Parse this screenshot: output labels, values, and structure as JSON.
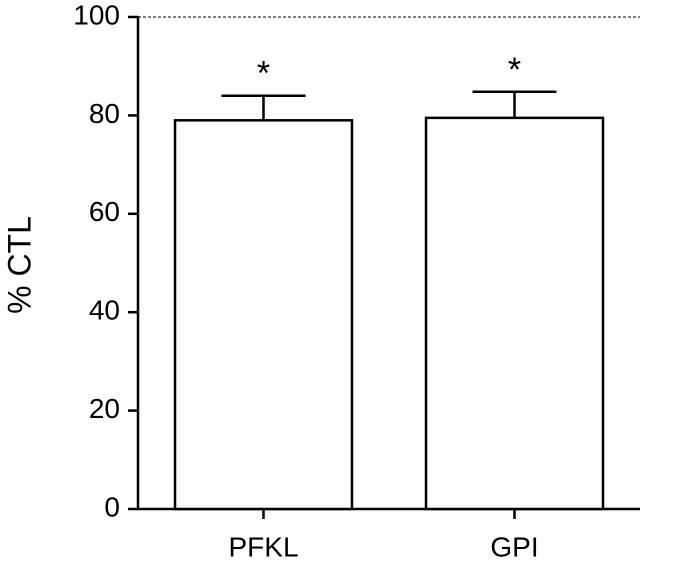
{
  "chart_data": {
    "type": "bar",
    "y_label": "% CTL",
    "categories": [
      "PFKL",
      "GPI"
    ],
    "values": [
      79,
      79.5
    ],
    "errors": [
      5,
      5.3
    ],
    "significance": [
      "*",
      "*"
    ],
    "color": "#ffffff",
    "ylim": [
      0,
      100
    ],
    "yticks": [
      0,
      20,
      40,
      60,
      80,
      100
    ],
    "reference_line": 100
  }
}
